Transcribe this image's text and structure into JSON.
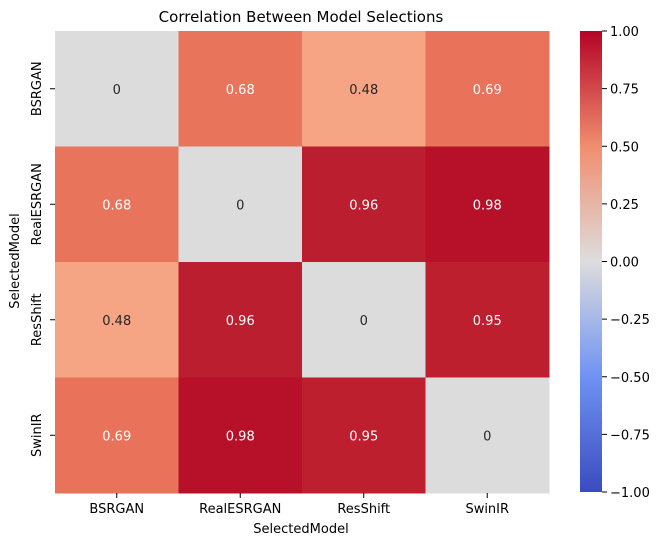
{
  "chart_data": {
    "type": "heatmap",
    "title": "Correlation Between Model Selections",
    "xlabel": "SelectedModel",
    "ylabel": "SelectedModel",
    "x_categories": [
      "BSRGAN",
      "RealESRGAN",
      "ResShift",
      "SwinIR"
    ],
    "y_categories": [
      "BSRGAN",
      "RealESRGAN",
      "ResShift",
      "SwinIR"
    ],
    "values": [
      [
        0,
        0.68,
        0.48,
        0.69
      ],
      [
        0.68,
        0,
        0.96,
        0.98
      ],
      [
        0.48,
        0.96,
        0,
        0.95
      ],
      [
        0.69,
        0.98,
        0.95,
        0
      ]
    ],
    "labels": [
      [
        "0",
        "0.68",
        "0.48",
        "0.69"
      ],
      [
        "0.68",
        "0",
        "0.96",
        "0.98"
      ],
      [
        "0.48",
        "0.96",
        "0",
        "0.95"
      ],
      [
        "0.69",
        "0.98",
        "0.95",
        "0"
      ]
    ],
    "colormap": "coolwarm",
    "vmin": -1.0,
    "vmax": 1.0,
    "colorbar_ticks": [
      "1.00",
      "0.75",
      "0.50",
      "0.25",
      "0.00",
      "−0.25",
      "−0.50",
      "−0.75",
      "−1.00"
    ],
    "colorbar_tick_values": [
      1.0,
      0.75,
      0.5,
      0.25,
      0.0,
      -0.25,
      -0.5,
      -0.75,
      -1.0
    ],
    "colorbar_stops": [
      {
        "v": -1.0,
        "color": "#3b4cc0"
      },
      {
        "v": -0.5,
        "color": "#6f92f3"
      },
      {
        "v": 0.0,
        "color": "#dddddd"
      },
      {
        "v": 0.5,
        "color": "#f18d6f"
      },
      {
        "v": 1.0,
        "color": "#b40426"
      }
    ],
    "cell_colors": [
      [
        "#dcdcdc",
        "#e8745c",
        "#f5a584",
        "#e8725a"
      ],
      [
        "#e8745c",
        "#dcdcdc",
        "#bb1e2f",
        "#b7112a"
      ],
      [
        "#f5a584",
        "#bb1e2f",
        "#dcdcdc",
        "#bd1f2f"
      ],
      [
        "#e8725a",
        "#b7112a",
        "#bd1f2f",
        "#dcdcdc"
      ]
    ],
    "text_color_dark": "#262626",
    "text_color_light": "#ffffff"
  }
}
